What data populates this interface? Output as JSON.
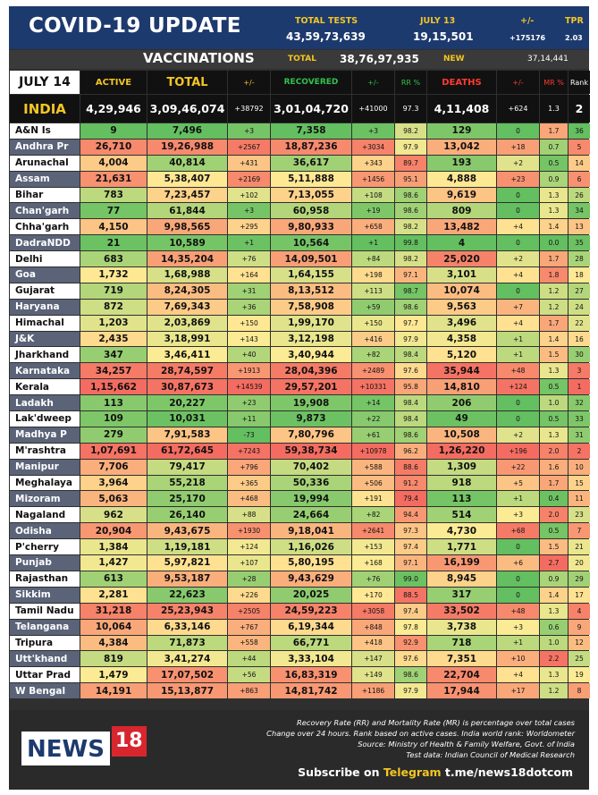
{
  "header": {
    "title": "COVID-19 UPDATE",
    "total_tests_label": "TOTAL TESTS",
    "total_tests": "43,59,73,639",
    "date_label": "JULY 13",
    "date_value": "19,15,501",
    "change_label": "+/-",
    "change_value": "+175176",
    "tpr_label": "TPR",
    "tpr_value": "2.03"
  },
  "vaccinations": {
    "label": "VACCINATIONS",
    "total_label": "TOTAL",
    "total": "38,76,97,935",
    "new_label": "NEW",
    "new": "37,14,441"
  },
  "columns": {
    "date": "JULY 14",
    "active": "ACTIVE",
    "total": "TOTAL",
    "change": "+/-",
    "recovered": "RECOVERED",
    "rec_change": "+/-",
    "rr": "RR %",
    "deaths": "DEATHS",
    "death_change": "+/-",
    "mr": "MR %",
    "rank": "Rank"
  },
  "india": {
    "name": "INDIA",
    "active": "4,29,946",
    "total": "3,09,46,074",
    "change": "+38792",
    "recovered": "3,01,04,720",
    "rec_change": "+41000",
    "rr": "97.3",
    "deaths": "4,11,408",
    "death_change": "+624",
    "mr": "1.3",
    "rank": "2"
  },
  "rows": [
    {
      "state": "A&N Is",
      "active": "9",
      "total": "7,496",
      "change": "+3",
      "recovered": "7,358",
      "rec_change": "+3",
      "rr": "98.2",
      "deaths": "129",
      "death_change": "0",
      "mr": "1.7",
      "rank": "36"
    },
    {
      "state": "Andhra Pr",
      "active": "26,710",
      "total": "19,26,988",
      "change": "+2567",
      "recovered": "18,87,236",
      "rec_change": "+3034",
      "rr": "97.9",
      "deaths": "13,042",
      "death_change": "+18",
      "mr": "0.7",
      "rank": "5"
    },
    {
      "state": "Arunachal",
      "active": "4,004",
      "total": "40,814",
      "change": "+431",
      "recovered": "36,617",
      "rec_change": "+343",
      "rr": "89.7",
      "deaths": "193",
      "death_change": "+2",
      "mr": "0.5",
      "rank": "14"
    },
    {
      "state": "Assam",
      "active": "21,631",
      "total": "5,38,407",
      "change": "+2169",
      "recovered": "5,11,888",
      "rec_change": "+1456",
      "rr": "95.1",
      "deaths": "4,888",
      "death_change": "+23",
      "mr": "0.9",
      "rank": "6"
    },
    {
      "state": "Bihar",
      "active": "783",
      "total": "7,23,457",
      "change": "+102",
      "recovered": "7,13,055",
      "rec_change": "+108",
      "rr": "98.6",
      "deaths": "9,619",
      "death_change": "0",
      "mr": "1.3",
      "rank": "26"
    },
    {
      "state": "Chan'garh",
      "active": "77",
      "total": "61,844",
      "change": "+3",
      "recovered": "60,958",
      "rec_change": "+19",
      "rr": "98.6",
      "deaths": "809",
      "death_change": "0",
      "mr": "1.3",
      "rank": "34"
    },
    {
      "state": "Chha'garh",
      "active": "4,150",
      "total": "9,98,565",
      "change": "+295",
      "recovered": "9,80,933",
      "rec_change": "+658",
      "rr": "98.2",
      "deaths": "13,482",
      "death_change": "+4",
      "mr": "1.4",
      "rank": "13"
    },
    {
      "state": "DadraNDD",
      "active": "21",
      "total": "10,589",
      "change": "+1",
      "recovered": "10,564",
      "rec_change": "+1",
      "rr": "99.8",
      "deaths": "4",
      "death_change": "0",
      "mr": "0.0",
      "rank": "35"
    },
    {
      "state": "Delhi",
      "active": "683",
      "total": "14,35,204",
      "change": "+76",
      "recovered": "14,09,501",
      "rec_change": "+84",
      "rr": "98.2",
      "deaths": "25,020",
      "death_change": "+2",
      "mr": "1.7",
      "rank": "28"
    },
    {
      "state": "Goa",
      "active": "1,732",
      "total": "1,68,988",
      "change": "+164",
      "recovered": "1,64,155",
      "rec_change": "+198",
      "rr": "97.1",
      "deaths": "3,101",
      "death_change": "+4",
      "mr": "1.8",
      "rank": "18"
    },
    {
      "state": "Gujarat",
      "active": "719",
      "total": "8,24,305",
      "change": "+31",
      "recovered": "8,13,512",
      "rec_change": "+113",
      "rr": "98.7",
      "deaths": "10,074",
      "death_change": "0",
      "mr": "1.2",
      "rank": "27"
    },
    {
      "state": "Haryana",
      "active": "872",
      "total": "7,69,343",
      "change": "+36",
      "recovered": "7,58,908",
      "rec_change": "+59",
      "rr": "98.6",
      "deaths": "9,563",
      "death_change": "+7",
      "mr": "1.2",
      "rank": "24"
    },
    {
      "state": "Himachal",
      "active": "1,203",
      "total": "2,03,869",
      "change": "+150",
      "recovered": "1,99,170",
      "rec_change": "+150",
      "rr": "97.7",
      "deaths": "3,496",
      "death_change": "+4",
      "mr": "1.7",
      "rank": "22"
    },
    {
      "state": "J&K",
      "active": "2,435",
      "total": "3,18,991",
      "change": "+143",
      "recovered": "3,12,198",
      "rec_change": "+416",
      "rr": "97.9",
      "deaths": "4,358",
      "death_change": "+1",
      "mr": "1.4",
      "rank": "16"
    },
    {
      "state": "Jharkhand",
      "active": "347",
      "total": "3,46,411",
      "change": "+40",
      "recovered": "3,40,944",
      "rec_change": "+82",
      "rr": "98.4",
      "deaths": "5,120",
      "death_change": "+1",
      "mr": "1.5",
      "rank": "30"
    },
    {
      "state": "Karnataka",
      "active": "34,257",
      "total": "28,74,597",
      "change": "+1913",
      "recovered": "28,04,396",
      "rec_change": "+2489",
      "rr": "97.6",
      "deaths": "35,944",
      "death_change": "+48",
      "mr": "1.3",
      "rank": "3"
    },
    {
      "state": "Kerala",
      "active": "1,15,662",
      "total": "30,87,673",
      "change": "+14539",
      "recovered": "29,57,201",
      "rec_change": "+10331",
      "rr": "95.8",
      "deaths": "14,810",
      "death_change": "+124",
      "mr": "0.5",
      "rank": "1"
    },
    {
      "state": "Ladakh",
      "active": "113",
      "total": "20,227",
      "change": "+23",
      "recovered": "19,908",
      "rec_change": "+14",
      "rr": "98.4",
      "deaths": "206",
      "death_change": "0",
      "mr": "1.0",
      "rank": "32"
    },
    {
      "state": "Lak'dweep",
      "active": "109",
      "total": "10,031",
      "change": "+11",
      "recovered": "9,873",
      "rec_change": "+22",
      "rr": "98.4",
      "deaths": "49",
      "death_change": "0",
      "mr": "0.5",
      "rank": "33"
    },
    {
      "state": "Madhya P",
      "active": "279",
      "total": "7,91,583",
      "change": "-73",
      "recovered": "7,80,796",
      "rec_change": "+61",
      "rr": "98.6",
      "deaths": "10,508",
      "death_change": "+2",
      "mr": "1.3",
      "rank": "31"
    },
    {
      "state": "M'rashtra",
      "active": "1,07,691",
      "total": "61,72,645",
      "change": "+7243",
      "recovered": "59,38,734",
      "rec_change": "+10978",
      "rr": "96.2",
      "deaths": "1,26,220",
      "death_change": "+196",
      "mr": "2.0",
      "rank": "2"
    },
    {
      "state": "Manipur",
      "active": "7,706",
      "total": "79,417",
      "change": "+796",
      "recovered": "70,402",
      "rec_change": "+588",
      "rr": "88.6",
      "deaths": "1,309",
      "death_change": "+22",
      "mr": "1.6",
      "rank": "10"
    },
    {
      "state": "Meghalaya",
      "active": "3,964",
      "total": "55,218",
      "change": "+365",
      "recovered": "50,336",
      "rec_change": "+506",
      "rr": "91.2",
      "deaths": "918",
      "death_change": "+5",
      "mr": "1.7",
      "rank": "15"
    },
    {
      "state": "Mizoram",
      "active": "5,063",
      "total": "25,170",
      "change": "+468",
      "recovered": "19,994",
      "rec_change": "+191",
      "rr": "79.4",
      "deaths": "113",
      "death_change": "+1",
      "mr": "0.4",
      "rank": "11"
    },
    {
      "state": "Nagaland",
      "active": "962",
      "total": "26,140",
      "change": "+88",
      "recovered": "24,664",
      "rec_change": "+82",
      "rr": "94.4",
      "deaths": "514",
      "death_change": "+3",
      "mr": "2.0",
      "rank": "23"
    },
    {
      "state": "Odisha",
      "active": "20,904",
      "total": "9,43,675",
      "change": "+1930",
      "recovered": "9,18,041",
      "rec_change": "+2641",
      "rr": "97.3",
      "deaths": "4,730",
      "death_change": "+68",
      "mr": "0.5",
      "rank": "7"
    },
    {
      "state": "P'cherry",
      "active": "1,384",
      "total": "1,19,181",
      "change": "+124",
      "recovered": "1,16,026",
      "rec_change": "+153",
      "rr": "97.4",
      "deaths": "1,771",
      "death_change": "0",
      "mr": "1.5",
      "rank": "21"
    },
    {
      "state": "Punjab",
      "active": "1,427",
      "total": "5,97,821",
      "change": "+107",
      "recovered": "5,80,195",
      "rec_change": "+168",
      "rr": "97.1",
      "deaths": "16,199",
      "death_change": "+6",
      "mr": "2.7",
      "rank": "20"
    },
    {
      "state": "Rajasthan",
      "active": "613",
      "total": "9,53,187",
      "change": "+28",
      "recovered": "9,43,629",
      "rec_change": "+76",
      "rr": "99.0",
      "deaths": "8,945",
      "death_change": "0",
      "mr": "0.9",
      "rank": "29"
    },
    {
      "state": "Sikkim",
      "active": "2,281",
      "total": "22,623",
      "change": "+226",
      "recovered": "20,025",
      "rec_change": "+170",
      "rr": "88.5",
      "deaths": "317",
      "death_change": "0",
      "mr": "1.4",
      "rank": "17"
    },
    {
      "state": "Tamil Nadu",
      "active": "31,218",
      "total": "25,23,943",
      "change": "+2505",
      "recovered": "24,59,223",
      "rec_change": "+3058",
      "rr": "97.4",
      "deaths": "33,502",
      "death_change": "+48",
      "mr": "1.3",
      "rank": "4"
    },
    {
      "state": "Telangana",
      "active": "10,064",
      "total": "6,33,146",
      "change": "+767",
      "recovered": "6,19,344",
      "rec_change": "+848",
      "rr": "97.8",
      "deaths": "3,738",
      "death_change": "+3",
      "mr": "0.6",
      "rank": "9"
    },
    {
      "state": "Tripura",
      "active": "4,384",
      "total": "71,873",
      "change": "+558",
      "recovered": "66,771",
      "rec_change": "+418",
      "rr": "92.9",
      "deaths": "718",
      "death_change": "+1",
      "mr": "1.0",
      "rank": "12"
    },
    {
      "state": "Utt'khand",
      "active": "819",
      "total": "3,41,274",
      "change": "+44",
      "recovered": "3,33,104",
      "rec_change": "+147",
      "rr": "97.6",
      "deaths": "7,351",
      "death_change": "+10",
      "mr": "2.2",
      "rank": "25"
    },
    {
      "state": "Uttar Prad",
      "active": "1,479",
      "total": "17,07,502",
      "change": "+56",
      "recovered": "16,83,319",
      "rec_change": "+149",
      "rr": "98.6",
      "deaths": "22,704",
      "death_change": "+4",
      "mr": "1.3",
      "rank": "19"
    },
    {
      "state": "W Bengal",
      "active": "14,191",
      "total": "15,13,877",
      "change": "+863",
      "recovered": "14,81,742",
      "rec_change": "+1186",
      "rr": "97.9",
      "deaths": "17,944",
      "death_change": "+17",
      "mr": "1.2",
      "rank": "8"
    }
  ],
  "footer": {
    "notes": [
      "Recovery Rate (RR) and Mortality Rate (MR) is percentage over total cases",
      "Change over 24 hours. Rank based on active cases. India world rank: Worldometer",
      "Source: Ministry of Health & Family Welfare, Govt. of India",
      "Test data: Indian Council of Medical Research"
    ],
    "logo_text": "NEWS",
    "logo_number": "18",
    "subscribe_prefix": "Subscribe on",
    "subscribe_app": "Telegram",
    "subscribe_link": "t.me/news18dotcom"
  },
  "colors": {
    "header_bg": "#1d3a6e",
    "accent_yellow": "#f3c623",
    "accent_green": "#32c24d",
    "accent_red": "#ff3b30",
    "state_alt_bg": "#5a6377",
    "brand_red": "#d7262e"
  }
}
